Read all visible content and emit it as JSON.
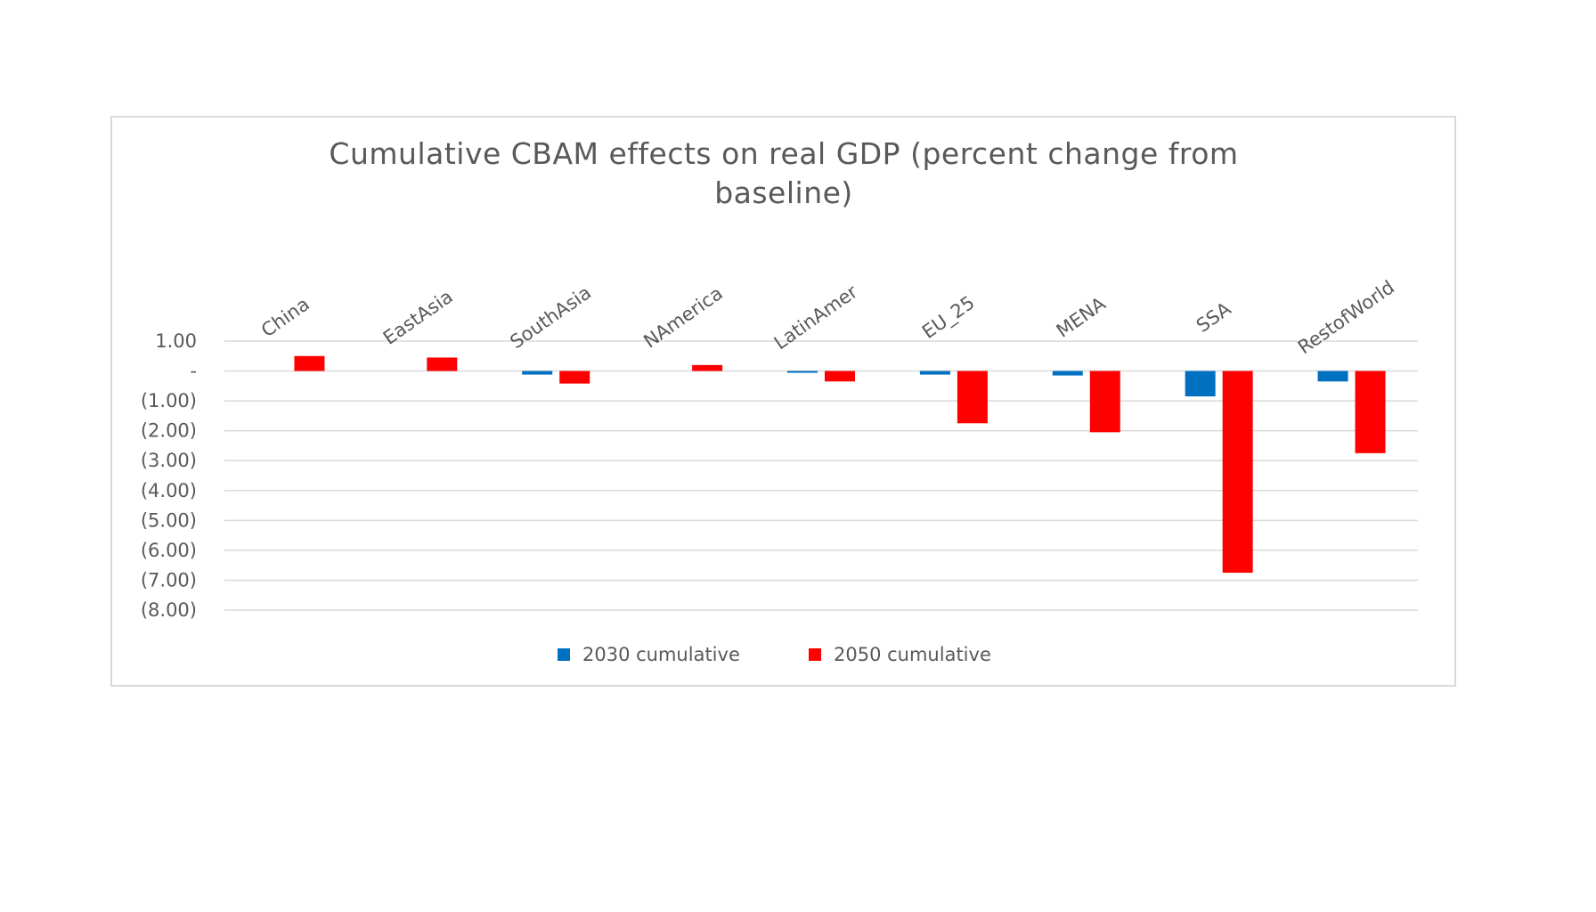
{
  "chart_data": {
    "type": "bar",
    "title_lines": [
      "Cumulative CBAM effects on real GDP (percent change from",
      "baseline)"
    ],
    "xlabel": "",
    "ylabel": "",
    "categories": [
      "China",
      "EastAsia",
      "SouthAsia",
      "NAmerica",
      "LatinAmer",
      "EU_25",
      "MENA",
      "SSA",
      "RestofWorld"
    ],
    "series": [
      {
        "name": "2030 cumulative",
        "color": "#0070c0",
        "values": [
          0.0,
          0.0,
          -0.12,
          0.0,
          -0.05,
          -0.12,
          -0.15,
          -0.85,
          -0.35
        ]
      },
      {
        "name": "2050 cumulative",
        "color": "#ff0000",
        "values": [
          0.5,
          0.45,
          -0.42,
          0.2,
          -0.35,
          -1.75,
          -2.05,
          -6.75,
          -2.75
        ]
      }
    ],
    "ylim": [
      -8,
      1
    ],
    "yticks": [
      1,
      0,
      -1,
      -2,
      -3,
      -4,
      -5,
      -6,
      -7,
      -8
    ],
    "ytick_labels": [
      "1.00",
      "-",
      "(1.00)",
      "(2.00)",
      "(3.00)",
      "(4.00)",
      "(5.00)",
      "(6.00)",
      "(7.00)",
      "(8.00)"
    ],
    "x_axis_position": "top",
    "grid": true,
    "legend_position": "bottom"
  }
}
